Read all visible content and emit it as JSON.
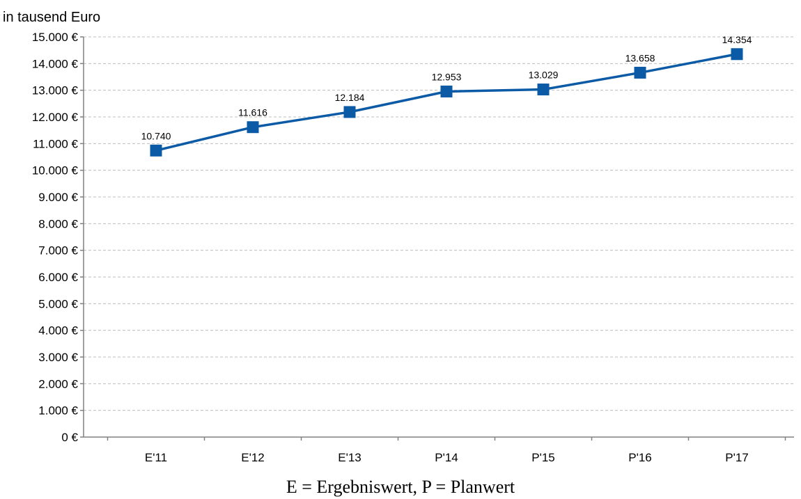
{
  "chart_data": {
    "type": "line",
    "unit_label": "in tausend  Euro",
    "footnote": "E = Ergebniswert, P = Planwert",
    "categories": [
      "E'11",
      "E'12",
      "E'13",
      "P'14",
      "P'15",
      "P'16",
      "P'17"
    ],
    "series": [
      {
        "values": [
          10740,
          11616,
          12184,
          12953,
          13029,
          13658,
          14354
        ],
        "data_labels": [
          "10.740",
          "11.616",
          "12.184",
          "12.953",
          "13.029",
          "13.658",
          "14.354"
        ],
        "color": "#0b5aa6",
        "marker": "square"
      }
    ],
    "ylim": [
      0,
      15000
    ],
    "y_ticks": [
      0,
      1000,
      2000,
      3000,
      4000,
      5000,
      6000,
      7000,
      8000,
      9000,
      10000,
      11000,
      12000,
      13000,
      14000,
      15000
    ],
    "y_tick_labels": [
      "0 €",
      "1.000 €",
      "2.000 €",
      "3.000 €",
      "4.000 €",
      "5.000 €",
      "6.000 €",
      "7.000 €",
      "8.000 €",
      "9.000 €",
      "10.000 €",
      "11.000 €",
      "12.000 €",
      "13.000 €",
      "14.000 €",
      "15.000 €"
    ],
    "grid": true,
    "legend": "none"
  }
}
